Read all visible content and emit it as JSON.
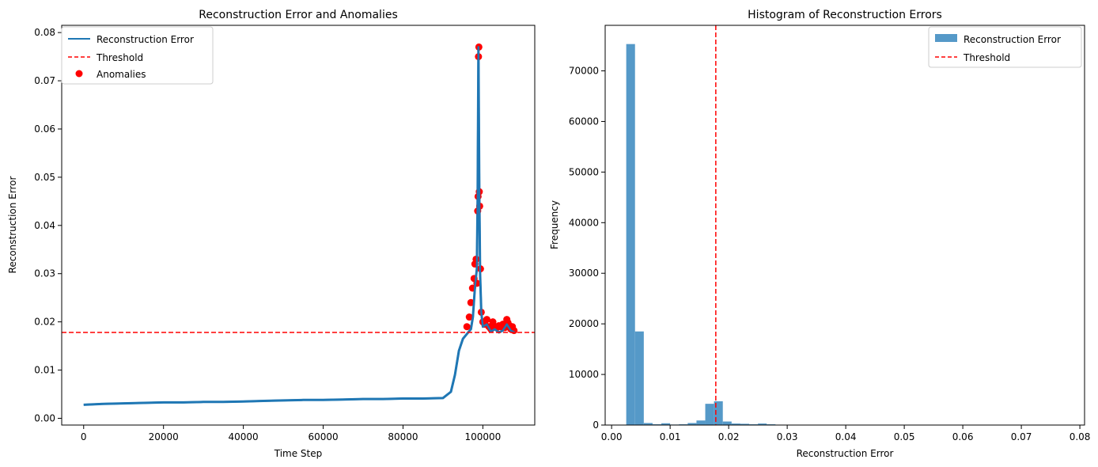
{
  "chart_data": [
    {
      "type": "line",
      "title": "Reconstruction Error and Anomalies",
      "xlabel": "Time Step",
      "ylabel": "Reconstruction Error",
      "xlim": [
        -5500,
        113000
      ],
      "ylim": [
        -0.0014,
        0.0815
      ],
      "xticks": [
        0,
        20000,
        40000,
        60000,
        80000,
        100000
      ],
      "xtick_labels": [
        "0",
        "20000",
        "40000",
        "60000",
        "80000",
        "100000"
      ],
      "yticks": [
        0.0,
        0.01,
        0.02,
        0.03,
        0.04,
        0.05,
        0.06,
        0.07,
        0.08
      ],
      "ytick_labels": [
        "0.00",
        "0.01",
        "0.02",
        "0.03",
        "0.04",
        "0.05",
        "0.06",
        "0.07",
        "0.08"
      ],
      "grid": false,
      "legend_position": "top-left",
      "legend": [
        "Reconstruction Error",
        "Threshold",
        "Anomalies"
      ],
      "threshold": 0.0178,
      "series": [
        {
          "name": "Reconstruction Error",
          "color": "#1f77b4",
          "x": [
            0,
            5000,
            10000,
            15000,
            20000,
            25000,
            30000,
            35000,
            40000,
            45000,
            50000,
            55000,
            60000,
            65000,
            70000,
            75000,
            80000,
            85000,
            90000,
            92000,
            93000,
            94000,
            95000,
            96000,
            97000,
            97500,
            98000,
            98500,
            98700,
            98900,
            99100,
            99300,
            99600,
            100000,
            101000,
            102000,
            103000,
            104000,
            105000,
            106000,
            107000,
            108000
          ],
          "y": [
            0.0028,
            0.003,
            0.0031,
            0.0032,
            0.0033,
            0.0033,
            0.0034,
            0.0034,
            0.0035,
            0.0036,
            0.0037,
            0.0038,
            0.0038,
            0.0039,
            0.004,
            0.004,
            0.0041,
            0.0041,
            0.0042,
            0.0055,
            0.009,
            0.014,
            0.0165,
            0.0175,
            0.0185,
            0.021,
            0.027,
            0.031,
            0.046,
            0.077,
            0.047,
            0.03,
            0.022,
            0.019,
            0.0195,
            0.018,
            0.0185,
            0.0178,
            0.0182,
            0.0195,
            0.0182,
            0.0178
          ]
        },
        {
          "name": "Threshold",
          "color": "#ff0000",
          "y": 0.0178
        },
        {
          "name": "Anomalies",
          "color": "#ff0000",
          "x": [
            96000,
            96600,
            97000,
            97400,
            97800,
            98000,
            98300,
            98500,
            98700,
            98800,
            98900,
            99000,
            99100,
            99200,
            99400,
            99600,
            100000,
            100500,
            101000,
            101500,
            102000,
            102500,
            103000,
            103500,
            104000,
            104500,
            105000,
            105500,
            106000,
            106300,
            106700,
            107000,
            107400,
            107800
          ],
          "y": [
            0.019,
            0.021,
            0.024,
            0.027,
            0.029,
            0.032,
            0.033,
            0.028,
            0.043,
            0.046,
            0.075,
            0.077,
            0.047,
            0.044,
            0.031,
            0.022,
            0.02,
            0.0195,
            0.0205,
            0.019,
            0.0185,
            0.02,
            0.019,
            0.0188,
            0.0192,
            0.019,
            0.0195,
            0.0188,
            0.0205,
            0.0198,
            0.0192,
            0.0185,
            0.019,
            0.0182
          ]
        }
      ]
    },
    {
      "type": "bar",
      "title": "Histogram of Reconstruction Errors",
      "xlabel": "Reconstruction Error",
      "ylabel": "Frequency",
      "xlim": [
        -0.0011,
        0.0808
      ],
      "ylim": [
        0,
        79000
      ],
      "xticks": [
        0.0,
        0.01,
        0.02,
        0.03,
        0.04,
        0.05,
        0.06,
        0.07,
        0.08
      ],
      "xtick_labels": [
        "0.00",
        "0.01",
        "0.02",
        "0.03",
        "0.04",
        "0.05",
        "0.06",
        "0.07",
        "0.08"
      ],
      "yticks": [
        0,
        10000,
        20000,
        30000,
        40000,
        50000,
        60000,
        70000
      ],
      "ytick_labels": [
        "0",
        "10000",
        "20000",
        "30000",
        "40000",
        "50000",
        "60000",
        "70000"
      ],
      "grid": false,
      "legend_position": "top-right",
      "legend": [
        "Reconstruction Error",
        "Threshold"
      ],
      "threshold": 0.0178,
      "series": [
        {
          "name": "Reconstruction Error",
          "color": "#5599c8",
          "bin_start": 0.0025,
          "bin_width": 0.0015,
          "values": [
            75300,
            18500,
            400,
            150,
            350,
            100,
            150,
            400,
            900,
            4200,
            4700,
            700,
            300,
            250,
            150,
            300,
            150,
            80,
            40,
            20,
            10,
            8,
            5,
            5,
            5,
            5,
            5,
            5,
            5,
            5,
            5,
            5,
            5,
            5,
            5,
            5,
            5,
            5,
            5,
            5,
            5,
            5,
            5,
            5,
            5,
            5,
            5,
            5,
            5,
            5
          ]
        },
        {
          "name": "Threshold",
          "color": "#ff0000",
          "x": 0.0178
        }
      ]
    }
  ]
}
